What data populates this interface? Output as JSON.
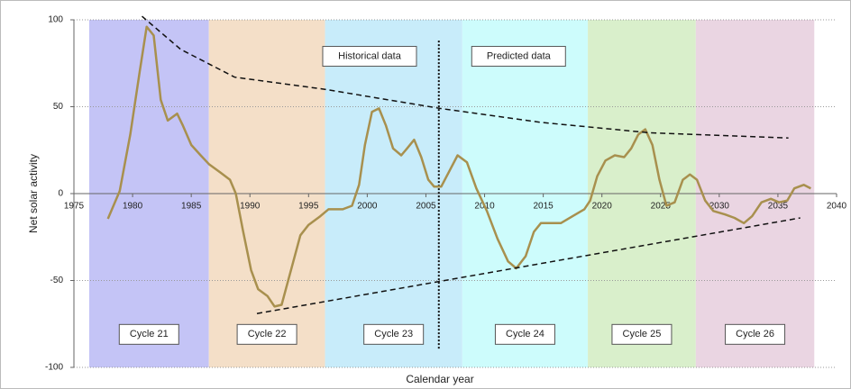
{
  "chart_data": {
    "type": "line",
    "x_label": "Calendar year",
    "y_label": "Net solar activity",
    "xlim": [
      1975,
      2040
    ],
    "xticks": [
      1975,
      1980,
      1985,
      1990,
      1995,
      2000,
      2005,
      2010,
      2015,
      2020,
      2025,
      2030,
      2035,
      2040
    ],
    "ylim": [
      -100,
      100
    ],
    "yticks": [
      -100,
      -50,
      0,
      50,
      100
    ],
    "grid": true,
    "bands": [
      {
        "label": "Cycle 21",
        "start": 1976.3,
        "end": 1986.5,
        "color": "#c4c4f6"
      },
      {
        "label": "Cycle 22",
        "start": 1986.5,
        "end": 1996.4,
        "color": "#f4dfc8"
      },
      {
        "label": "Cycle 23",
        "start": 1996.4,
        "end": 2008.1,
        "color": "#c8ecfa"
      },
      {
        "label": "Cycle 24",
        "start": 2008.1,
        "end": 2018.8,
        "color": "#cdfcfc"
      },
      {
        "label": "Cycle 25",
        "start": 2018.8,
        "end": 2028.0,
        "color": "#d9efcb"
      },
      {
        "label": "Cycle 26",
        "start": 2028.0,
        "end": 2038.1,
        "color": "#ead5e2"
      }
    ],
    "annotations": [
      "Historical data",
      "Predicted data"
    ],
    "divider": {
      "x": 2006.1,
      "from": 88,
      "to": -90
    },
    "curve": {
      "color": "#a8904e",
      "x": [
        1977.9,
        1978.9,
        1979.8,
        1980.6,
        1981.2,
        1981.8,
        1982.4,
        1983.0,
        1983.8,
        1984.3,
        1985.0,
        1985.8,
        1986.5,
        1987.5,
        1988.3,
        1988.8,
        1989.4,
        1990.1,
        1990.7,
        1991.5,
        1992.1,
        1992.7,
        1993.1,
        1993.7,
        1994.3,
        1995.0,
        1996.0,
        1996.7,
        1997.9,
        1998.7,
        1999.3,
        1999.8,
        2000.4,
        2001.0,
        2001.6,
        2002.2,
        2002.9,
        2003.4,
        2004.0,
        2004.6,
        2005.2,
        2005.7,
        2006.3,
        2007.0,
        2007.7,
        2008.5,
        2009.3,
        2010.2,
        2011.1,
        2012.0,
        2012.7,
        2013.5,
        2014.2,
        2014.8,
        2015.7,
        2016.5,
        2017.5,
        2018.5,
        2019.0,
        2019.6,
        2020.3,
        2021.1,
        2021.9,
        2022.5,
        2023.1,
        2023.7,
        2024.3,
        2024.9,
        2025.5,
        2026.2,
        2026.9,
        2027.5,
        2028.1,
        2028.8,
        2029.5,
        2030.5,
        2031.3,
        2032.1,
        2032.8,
        2033.6,
        2034.4,
        2035.1,
        2035.8,
        2036.4,
        2037.2,
        2037.8
      ],
      "values": [
        -14.5,
        1.5,
        34,
        70,
        96,
        91,
        54,
        42,
        46,
        39,
        28,
        22,
        17,
        12,
        8,
        0,
        -21,
        -44,
        -55,
        -59,
        -65,
        -64,
        -54,
        -39,
        -24,
        -18,
        -13,
        -9,
        -9,
        -7,
        5,
        28,
        47,
        49,
        39,
        26,
        22,
        26,
        31,
        21,
        8,
        4,
        4,
        13,
        22,
        18,
        3,
        -10,
        -26,
        -39,
        -43,
        -36,
        -22,
        -17,
        -17,
        -17,
        -13,
        -9,
        -4,
        10,
        19,
        22,
        21,
        26,
        34,
        37,
        28,
        8,
        -7,
        -5,
        8,
        11,
        8,
        -4,
        -10,
        -12,
        -14,
        -17,
        -13,
        -5,
        -3,
        -5,
        -4,
        3,
        5,
        3
      ]
    },
    "upper_trend": {
      "x": [
        1980.8,
        1984.1,
        1988.7,
        1996.4,
        2006.2,
        2014.8,
        2024.0,
        2035.9
      ],
      "values": [
        102,
        83,
        67,
        60,
        49,
        41,
        35,
        32
      ]
    },
    "lower_trend": {
      "x": [
        1990.6,
        2036.9
      ],
      "values": [
        -69,
        -14
      ]
    }
  }
}
